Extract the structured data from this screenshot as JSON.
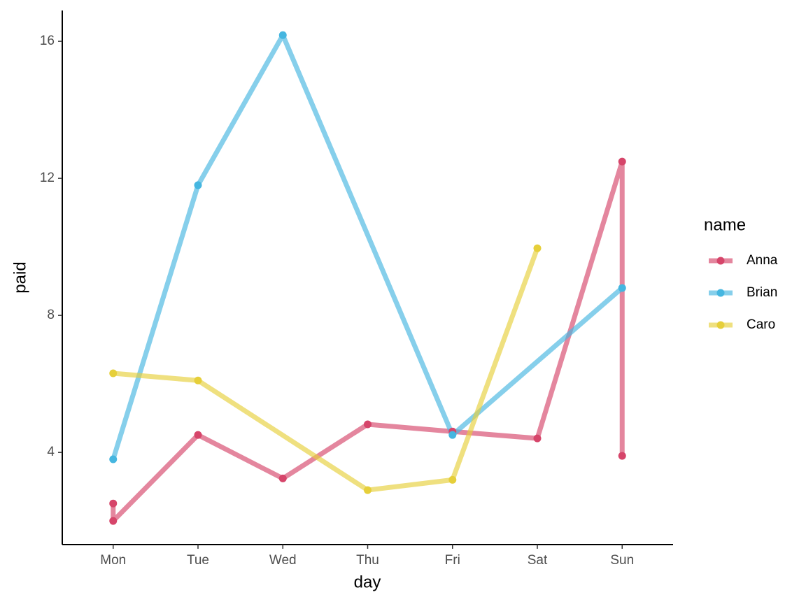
{
  "chart_data": {
    "type": "line",
    "x_label": "day",
    "y_label": "paid",
    "categories": [
      "Mon",
      "Tue",
      "Wed",
      "Thu",
      "Fri",
      "Sat",
      "Sun"
    ],
    "ylim": [
      1.31,
      16.9
    ],
    "yticks": [
      4,
      8,
      12,
      16
    ],
    "legend_title": "name",
    "series": [
      {
        "name": "Anna",
        "color": "#d6456a",
        "x": [
          "Mon",
          "Mon",
          "Tue",
          "Wed",
          "Thu",
          "Fri",
          "Sat",
          "Sun",
          "Sun"
        ],
        "values": [
          2.51,
          2.0,
          4.51,
          3.24,
          4.82,
          4.61,
          4.41,
          12.49,
          3.9
        ]
      },
      {
        "name": "Brian",
        "color": "#45b6e0",
        "x": [
          "Mon",
          "Tue",
          "Wed",
          "Fri",
          "Sun"
        ],
        "values": [
          3.8,
          11.8,
          16.18,
          4.51,
          8.8
        ]
      },
      {
        "name": "Caro",
        "color": "#e6cf3a",
        "x": [
          "Mon",
          "Tue",
          "Thu",
          "Fri",
          "Sat"
        ],
        "values": [
          6.31,
          6.1,
          2.9,
          3.2,
          9.96
        ]
      }
    ]
  }
}
